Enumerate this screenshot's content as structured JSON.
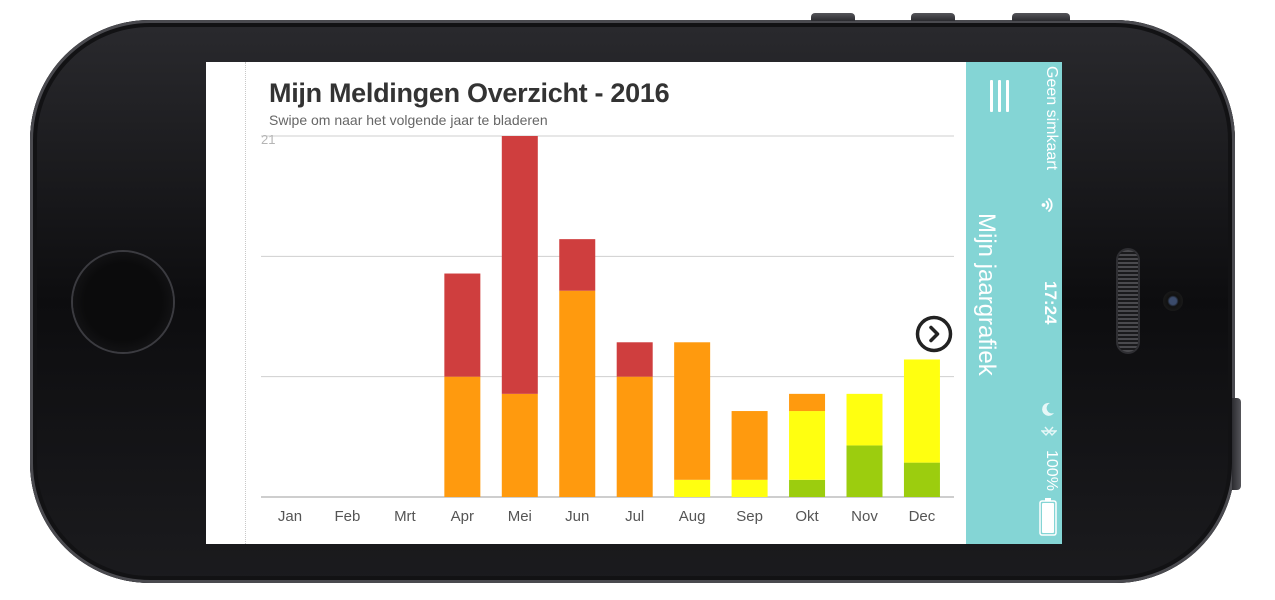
{
  "header": {
    "title": "Mijn Meldingen Overzicht - 2016",
    "subtitle": "Swipe om naar het volgende jaar te bladeren"
  },
  "side_panel": {
    "title": "Mijn jaargrafiek"
  },
  "status_bar": {
    "carrier": "Geen simkaart",
    "time": "17:24",
    "battery": "100%"
  },
  "icons": {
    "menu": "hamburger-menu-icon",
    "next": "chevron-right-circle-icon",
    "wifi": "wifi-icon",
    "moon": "moon-icon",
    "bluetooth": "bluetooth-icon",
    "battery": "battery-icon"
  },
  "colors": {
    "red": "#cf3e3e",
    "orange": "#ff9a0e",
    "yellow": "#ffff10",
    "green": "#9ccd0e",
    "panel": "#84d5d5"
  },
  "chart_data": {
    "type": "bar",
    "stacked": true,
    "title": "Mijn Meldingen Overzicht - 2016",
    "subtitle": "Swipe om naar het volgende jaar te bladeren",
    "categories": [
      "Jan",
      "Feb",
      "Mrt",
      "Apr",
      "Mei",
      "Jun",
      "Jul",
      "Aug",
      "Sep",
      "Okt",
      "Nov",
      "Dec"
    ],
    "ylim": [
      0,
      21
    ],
    "y_tick_labels": [
      "21"
    ],
    "gridlines": [
      0,
      7,
      14,
      21
    ],
    "grid": true,
    "legend": "none",
    "series": [
      {
        "color": "#9ccd0e",
        "values": [
          0,
          0,
          0,
          0,
          0,
          0,
          0,
          0,
          0,
          1,
          3,
          2
        ]
      },
      {
        "color": "#ffff10",
        "values": [
          0,
          0,
          0,
          0,
          0,
          0,
          0,
          1,
          1,
          4,
          3,
          6
        ]
      },
      {
        "color": "#ff9a0e",
        "values": [
          0,
          0,
          0,
          7,
          6,
          12,
          7,
          8,
          4,
          1,
          0,
          0
        ]
      },
      {
        "color": "#cf3e3e",
        "values": [
          0,
          0,
          0,
          6,
          15,
          3,
          2,
          0,
          0,
          0,
          0,
          0
        ]
      }
    ]
  }
}
